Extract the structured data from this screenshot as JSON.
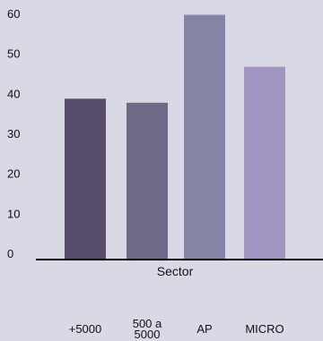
{
  "chart_data": {
    "type": "bar",
    "categories": [
      "+5000",
      "500 a 5000",
      "AP",
      "MICRO"
    ],
    "category_lines": [
      [
        "+5000"
      ],
      [
        "500 a",
        "5000"
      ],
      [
        "AP"
      ],
      [
        "MICRO"
      ]
    ],
    "values": [
      40,
      39,
      61,
      48
    ],
    "colors": [
      "#574d6a",
      "#6c6a86",
      "#8484a5",
      "#a295c2"
    ],
    "xlabel": "Sector",
    "ylabel": "",
    "ylim": [
      0,
      65
    ],
    "yticks": [
      0,
      10,
      20,
      30,
      40,
      50,
      60
    ],
    "grid": false,
    "legend": false
  }
}
